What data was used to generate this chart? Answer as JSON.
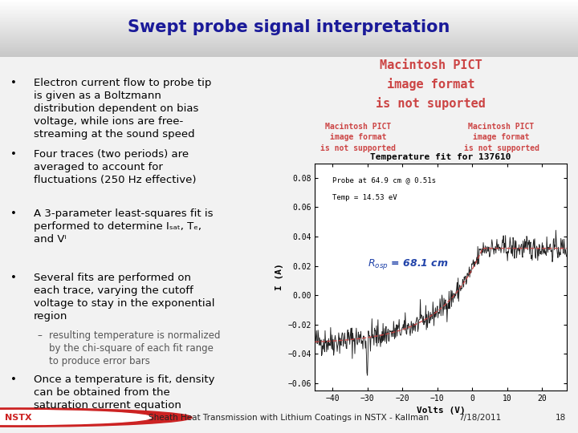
{
  "title": "Swept probe signal interpretation",
  "title_color": "#1a1a99",
  "title_fontsize": 15,
  "slide_bg": "#f2f2f2",
  "header_bg_top": "#e8e8e8",
  "header_bg_bottom": "#cccccc",
  "footer_bg": "#aaaaaa",
  "red_line_color": "#cc2222",
  "bullet_points": [
    "Electron current flow to probe tip\nis given as a Boltzmann\ndistribution dependent on bias\nvoltage, while ions are free-\nstreaming at the sound speed",
    "Four traces (two periods) are\naveraged to account for\nfluctuations (250 Hz effective)",
    "A 3-parameter least-squares fit is\nperformed to determine Iₛₐₜ, Tₑ,\nand Vⁱ",
    "Several fits are performed on\neach trace, varying the cutoff\nvoltage to stay in the exponential\nregion"
  ],
  "sub_bullet": "resulting temperature is normalized\nby the chi-square of each fit range\nto produce error bars",
  "last_bullet": "Once a temperature is fit, density\ncan be obtained from the\nsaturation current equation",
  "bullet_fontsize": 9.5,
  "sub_bullet_fontsize": 8.5,
  "pict_text_main": "Macintosh PICT\nimage format\nis not suported",
  "pict_text_small1": "Macintosh PICT\nimage format\nis not supported",
  "pict_text_small2": "Macintosh PICT\nimage format\nis not supported",
  "pict_color": "#cc4444",
  "graph_title": "Temperature fit for 137610",
  "graph_label1": "Probe at 64.9 cm @ 0.51s",
  "graph_label2": "Temp = 14.53 eV",
  "graph_annotation": "R",
  "graph_annotation_sub": "osp",
  "graph_annotation2": " = 68.1 cm",
  "graph_ylabel": "I (A)",
  "graph_xlabel": "Volts (V)",
  "footer_left": "NSTX",
  "footer_center": "Sheath Heat Transmission with Lithium Coatings in NSTX - Kallman",
  "footer_right": "7/18/2011",
  "footer_page": "18",
  "nstx_color": "#cc2222"
}
